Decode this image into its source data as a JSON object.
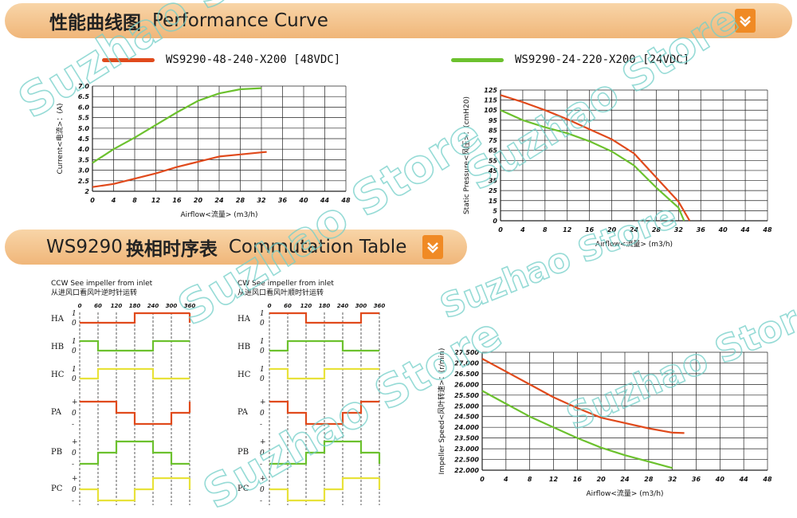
{
  "banners": {
    "performance": {
      "cn": "性能曲线图",
      "en": "Performance Curve",
      "icon": "chevron-down-icon"
    },
    "commutation": {
      "prefix": "WS9290",
      "cn": "换相时序表",
      "en": "Commutation Table",
      "icon": "chevron-down-icon"
    }
  },
  "legend": [
    {
      "label": "WS9290-48-240-X200 [48VDC]",
      "color": "#e04a1c"
    },
    {
      "label": "WS9290-24-220-X200 [24VDC]",
      "color": "#6cc12e"
    }
  ],
  "watermark": "Suzhao Store",
  "chart_data": [
    {
      "type": "line",
      "title": "",
      "xlabel": "Airflow<流量> (m3/h)",
      "ylabel": "Current<电流>：(A)",
      "x_ticks": [
        "0",
        "4",
        "8",
        "12",
        "16",
        "20",
        "24",
        "28",
        "32",
        "36",
        "40",
        "44",
        "48"
      ],
      "y_ticks": [
        "2",
        "2.5",
        "3.0",
        "3.5",
        "4.0",
        "4.5",
        "5.0",
        "5.5",
        "6.0",
        "6.5",
        "7.0"
      ],
      "xlim": [
        0,
        48
      ],
      "ylim": [
        2,
        7
      ],
      "grid": true,
      "series": [
        {
          "name": "WS9290-48-240-X200 [48VDC]",
          "color": "#e04a1c",
          "x": [
            0,
            4,
            8,
            12,
            16,
            20,
            24,
            28,
            32,
            33
          ],
          "y": [
            2.2,
            2.35,
            2.6,
            2.85,
            3.15,
            3.4,
            3.65,
            3.75,
            3.85,
            3.87
          ]
        },
        {
          "name": "WS9290-24-220-X200 [24VDC]",
          "color": "#6cc12e",
          "x": [
            0,
            4,
            8,
            12,
            16,
            20,
            24,
            28,
            32
          ],
          "y": [
            3.35,
            4.0,
            4.55,
            5.15,
            5.75,
            6.3,
            6.65,
            6.85,
            6.9
          ]
        }
      ]
    },
    {
      "type": "line",
      "title": "",
      "xlabel": "Airflow<流量> (m3/h)",
      "ylabel": "Static Pressure<风压>：(cmH20)",
      "x_ticks": [
        "0",
        "4",
        "8",
        "12",
        "16",
        "20",
        "24",
        "28",
        "32",
        "36",
        "40",
        "44",
        "48"
      ],
      "y_ticks": [
        "0",
        "5",
        "15",
        "25",
        "35",
        "45",
        "55",
        "65",
        "75",
        "85",
        "95",
        "105",
        "115",
        "125"
      ],
      "xlim": [
        0,
        48
      ],
      "ylim": [
        0,
        125
      ],
      "grid": true,
      "series": [
        {
          "name": "WS9290-48-240-X200 [48VDC]",
          "color": "#e04a1c",
          "x": [
            0,
            4,
            8,
            12,
            16,
            20,
            24,
            28,
            32,
            34
          ],
          "y": [
            120,
            113,
            105,
            96,
            86,
            76,
            62,
            38,
            14,
            0
          ]
        },
        {
          "name": "WS9290-24-220-X200 [24VDC]",
          "color": "#6cc12e",
          "x": [
            0,
            4,
            8,
            12,
            16,
            20,
            24,
            28,
            32,
            33
          ],
          "y": [
            105,
            95,
            88,
            82,
            74,
            64,
            50,
            28,
            8,
            0
          ]
        }
      ]
    },
    {
      "type": "line",
      "title": "",
      "xlabel": "Airflow<流量> (m3/h)",
      "ylabel": "Impeller Speed<风叶转速>：(r/min)",
      "x_ticks": [
        "0",
        "4",
        "8",
        "12",
        "16",
        "20",
        "24",
        "28",
        "32",
        "36",
        "40",
        "44",
        "48"
      ],
      "y_ticks": [
        "22.000",
        "22.500",
        "23.000",
        "23.500",
        "24.000",
        "24.500",
        "25.000",
        "25.500",
        "26.000",
        "26.500",
        "27.000",
        "27.500"
      ],
      "xlim": [
        0,
        48
      ],
      "ylim": [
        22,
        27.5
      ],
      "grid": true,
      "series": [
        {
          "name": "WS9290-48-240-X200 [48VDC]",
          "color": "#e04a1c",
          "x": [
            0,
            4,
            8,
            12,
            16,
            20,
            24,
            28,
            32,
            34
          ],
          "y": [
            27.2,
            26.6,
            26.0,
            25.4,
            24.9,
            24.45,
            24.2,
            23.95,
            23.75,
            23.73
          ]
        },
        {
          "name": "WS9290-24-220-X200 [24VDC]",
          "color": "#6cc12e",
          "x": [
            0,
            4,
            8,
            12,
            16,
            20,
            24,
            28,
            32
          ],
          "y": [
            25.7,
            25.1,
            24.5,
            24.0,
            23.5,
            23.05,
            22.7,
            22.4,
            22.1
          ]
        }
      ]
    },
    {
      "type": "timing",
      "title": "CCW See impeller from inlet",
      "subtitle": "从进风口看风叶逆时针运转",
      "degrees": [
        "0",
        "60",
        "120",
        "180",
        "240",
        "300",
        "360"
      ],
      "signals": [
        {
          "name": "HA",
          "kind": "hall",
          "color": "#e04a1c",
          "levels": [
            0,
            0,
            0,
            1,
            1,
            1
          ]
        },
        {
          "name": "HB",
          "kind": "hall",
          "color": "#6cc12e",
          "levels": [
            1,
            0,
            0,
            0,
            1,
            1
          ]
        },
        {
          "name": "HC",
          "kind": "hall",
          "color": "#e8e23a",
          "levels": [
            0,
            1,
            1,
            1,
            0,
            0
          ]
        },
        {
          "name": "PA",
          "kind": "phase",
          "color": "#e04a1c",
          "levels": [
            1,
            1,
            0,
            -1,
            -1,
            0
          ]
        },
        {
          "name": "PB",
          "kind": "phase",
          "color": "#6cc12e",
          "levels": [
            -1,
            0,
            1,
            1,
            0,
            -1
          ]
        },
        {
          "name": "PC",
          "kind": "phase",
          "color": "#e8e23a",
          "levels": [
            0,
            -1,
            -1,
            0,
            1,
            1
          ]
        }
      ]
    },
    {
      "type": "timing",
      "title": "CW See impeller from inlet",
      "subtitle": "从进风口看风叶顺时针运转",
      "degrees": [
        "0",
        "60",
        "120",
        "180",
        "240",
        "300",
        "360"
      ],
      "signals": [
        {
          "name": "HA",
          "kind": "hall",
          "color": "#e04a1c",
          "levels": [
            1,
            1,
            0,
            0,
            0,
            1
          ]
        },
        {
          "name": "HB",
          "kind": "hall",
          "color": "#6cc12e",
          "levels": [
            0,
            1,
            1,
            1,
            0,
            0
          ]
        },
        {
          "name": "HC",
          "kind": "hall",
          "color": "#e8e23a",
          "levels": [
            1,
            0,
            0,
            1,
            1,
            1
          ]
        },
        {
          "name": "PA",
          "kind": "phase",
          "color": "#e04a1c",
          "levels": [
            1,
            0,
            -1,
            -1,
            0,
            1
          ]
        },
        {
          "name": "PB",
          "kind": "phase",
          "color": "#6cc12e",
          "levels": [
            -1,
            -1,
            0,
            1,
            1,
            0
          ]
        },
        {
          "name": "PC",
          "kind": "phase",
          "color": "#e8e23a",
          "levels": [
            0,
            -1,
            -1,
            0,
            1,
            1
          ]
        }
      ]
    }
  ]
}
